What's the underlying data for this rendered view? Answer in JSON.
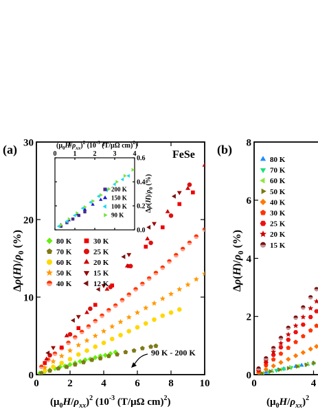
{
  "panel_a": {
    "label": "(a)",
    "material": "FeSe",
    "annotation": "90 K - 200 K",
    "xtick_labels": [
      "0",
      "2",
      "4",
      "6",
      "8",
      "10"
    ],
    "ytick_labels": [
      "0",
      "10",
      "20",
      "30"
    ],
    "inset_xtick_labels": [
      "0",
      "1",
      "2",
      "3",
      "4"
    ],
    "inset_ytick_labels": [
      "0.0",
      "0.2",
      "0.4",
      "0.6"
    ]
  },
  "panel_b": {
    "label": "(b)",
    "xtick_labels": [
      "0",
      "4"
    ],
    "ytick_labels": [
      "0",
      "2",
      "4",
      "6",
      "8"
    ]
  },
  "colors": {
    "K200": "#4b2a8c",
    "K150": "#1b1bc8",
    "K100": "#20d8f0",
    "K90": "#7ae040",
    "K80": "#66ee11",
    "K70": "#7f7a18",
    "K60": "#ffd800",
    "K50": "#ff9a00",
    "K40": "#ff3300",
    "K30": "#ee0000",
    "K25": "#dd1111",
    "K20": "#cc0000",
    "K15": "#990000",
    "K12": "#7a1010",
    "b80": "#1e8cff",
    "b70": "#19e07a",
    "b60": "#8ee83a",
    "b50": "#7a7a10",
    "b40": "#ff7a00",
    "b30": "#ff3300",
    "b25": "#ee1111",
    "b20": "#cc0000",
    "b15": "#7a1010"
  },
  "chart_data": [
    {
      "type": "scatter",
      "panel": "(a)",
      "title": "FeSe",
      "xlabel": "(μ0H/ρxx)² (10⁻³ (T/μΩ cm)²)",
      "ylabel": "Δρ(H)/ρ0 (%)",
      "xlim": [
        0,
        10
      ],
      "ylim": [
        0,
        30
      ],
      "series": [
        {
          "name": "80 K",
          "marker": "diamond",
          "color_key": "K80",
          "x": [
            0.2,
            0.5,
            0.8,
            1.1,
            1.4,
            1.7,
            2.0,
            2.3,
            2.6,
            2.9,
            3.2,
            3.5,
            3.8,
            4.1,
            4.4,
            4.7
          ],
          "y": [
            0.2,
            0.4,
            0.6,
            0.8,
            1.0,
            1.1,
            1.3,
            1.5,
            1.7,
            1.9,
            2.0,
            2.2,
            2.4,
            2.5,
            2.7,
            2.9
          ]
        },
        {
          "name": "70 K",
          "marker": "pentagon",
          "color_key": "K70",
          "x": [
            0.3,
            0.8,
            1.3,
            1.8,
            2.3,
            2.8,
            3.3,
            3.8,
            4.3,
            4.8,
            5.3,
            5.8,
            6.3,
            6.8,
            7.1
          ],
          "y": [
            0.2,
            0.5,
            0.8,
            1.0,
            1.3,
            1.6,
            1.9,
            2.1,
            2.4,
            2.6,
            2.9,
            3.1,
            3.4,
            3.6,
            3.7
          ]
        },
        {
          "name": "60 K",
          "marker": "circle",
          "color_key": "K60",
          "x": [
            0.5,
            1.0,
            1.5,
            2.0,
            2.5,
            3.0,
            3.5,
            4.0,
            4.5,
            5.0,
            5.5,
            6.0,
            6.5,
            7.0,
            7.5,
            8.0,
            8.5
          ],
          "y": [
            0.5,
            1.0,
            1.5,
            2.0,
            2.6,
            3.1,
            3.6,
            4.1,
            4.6,
            5.1,
            5.6,
            6.1,
            6.6,
            7.1,
            7.6,
            8.0,
            8.4
          ]
        },
        {
          "name": "50 K",
          "marker": "star",
          "color_key": "K50",
          "x": [
            0.5,
            1.0,
            1.5,
            2.0,
            2.5,
            3.0,
            3.5,
            4.0,
            4.5,
            5.0,
            5.5,
            6.0,
            6.5,
            7.0,
            7.5,
            8.0,
            8.5,
            9.0,
            9.5,
            10.0
          ],
          "y": [
            0.9,
            1.7,
            2.4,
            3.1,
            3.8,
            4.4,
            5.0,
            5.6,
            6.2,
            6.8,
            7.4,
            8.0,
            8.6,
            9.2,
            9.8,
            10.4,
            11.0,
            11.6,
            12.3,
            13.0
          ]
        },
        {
          "name": "40 K",
          "marker": "half-circle",
          "color_key": "K40",
          "x": [
            0.3,
            0.7,
            1.1,
            1.5,
            1.9,
            2.3,
            2.7,
            3.1,
            3.5,
            3.9,
            4.3,
            4.7,
            5.1,
            5.5,
            5.9,
            6.3,
            6.7,
            7.1,
            7.5,
            7.9,
            8.3,
            8.7,
            9.1,
            9.5,
            10.0
          ],
          "y": [
            1.0,
            1.9,
            2.7,
            3.4,
            4.1,
            4.8,
            5.5,
            6.2,
            6.9,
            7.6,
            8.3,
            8.9,
            9.6,
            10.3,
            11.0,
            11.7,
            12.4,
            13.1,
            13.8,
            14.6,
            15.4,
            16.2,
            17.0,
            17.8,
            18.7
          ]
        },
        {
          "name": "30 K",
          "marker": "square",
          "color_key": "K30",
          "x": [
            0.5,
            1.5,
            2.5,
            3.5,
            4.5,
            5.5,
            6.5,
            7.5,
            8.5,
            9.3
          ],
          "y": [
            1.5,
            3.5,
            6.0,
            9.0,
            11.5,
            14.0,
            16.5,
            19.0,
            22.0,
            23.5
          ]
        },
        {
          "name": "25 K",
          "marker": "circle",
          "color_key": "K25",
          "x": [
            0.8,
            2.0,
            3.2,
            4.4,
            5.6,
            6.8,
            8.0,
            9.1
          ],
          "y": [
            2.5,
            5.2,
            8.5,
            11.3,
            14.0,
            17.0,
            20.5,
            24.5
          ]
        },
        {
          "name": "20 K",
          "marker": "triangle-up",
          "color_key": "K20",
          "x": [
            0.6,
            1.8,
            3.0,
            4.2,
            5.4,
            6.6,
            7.8,
            9.0,
            10.0
          ],
          "y": [
            2.0,
            5.0,
            8.0,
            11.0,
            14.0,
            17.5,
            21.0,
            24.0,
            27.0
          ]
        },
        {
          "name": "15 K",
          "marker": "triangle-down",
          "color_key": "K15",
          "x": [
            1.0,
            2.5,
            4.0,
            5.5,
            7.0,
            8.5
          ],
          "y": [
            3.5,
            7.5,
            11.5,
            15.5,
            19.5,
            23.5
          ]
        },
        {
          "name": "12 K",
          "marker": "triangle-left",
          "color_key": "K12",
          "x": [
            0.7,
            2.2,
            3.7,
            5.2,
            6.7,
            8.2
          ],
          "y": [
            2.8,
            7.0,
            11.0,
            15.2,
            19.0,
            23.0
          ]
        }
      ]
    },
    {
      "type": "scatter",
      "panel": "(a) inset",
      "xlabel": "(μ0H/ρxx)² (10⁻³ (T/μΩ cm)²)",
      "ylabel": "Δρ(H)/ρ0 (%)",
      "xlim": [
        0,
        4
      ],
      "ylim": [
        0,
        0.6
      ],
      "series": [
        {
          "name": "200 K",
          "marker": "square",
          "color_key": "K200",
          "x": [
            0.3,
            0.6,
            0.9,
            1.2,
            1.5
          ],
          "y": [
            0.03,
            0.06,
            0.09,
            0.12,
            0.15
          ]
        },
        {
          "name": "150 K",
          "marker": "triangle-up",
          "color_key": "K150",
          "x": [
            0.3,
            0.7,
            1.1,
            1.5,
            1.9,
            2.3
          ],
          "y": [
            0.04,
            0.08,
            0.13,
            0.17,
            0.21,
            0.25
          ]
        },
        {
          "name": "100 K",
          "marker": "triangle-left",
          "color_key": "K100",
          "x": [
            0.2,
            0.6,
            1.0,
            1.4,
            1.8,
            2.2,
            2.6,
            3.0,
            3.4,
            3.7
          ],
          "y": [
            0.03,
            0.07,
            0.12,
            0.18,
            0.23,
            0.28,
            0.33,
            0.38,
            0.42,
            0.45
          ]
        },
        {
          "name": "90 K",
          "marker": "triangle-right",
          "color_key": "K90",
          "x": [
            0.3,
            0.7,
            1.1,
            1.5,
            1.9,
            2.3,
            2.7,
            3.1,
            3.5,
            3.9
          ],
          "y": [
            0.04,
            0.09,
            0.14,
            0.19,
            0.24,
            0.29,
            0.34,
            0.4,
            0.45,
            0.5
          ]
        }
      ]
    },
    {
      "type": "scatter",
      "panel": "(b)",
      "ylabel": "Δρ(H)/ρ0 (%)",
      "xlabel": "(μ0H/ρ",
      "xlim": [
        0,
        4.3
      ],
      "ylim": [
        0,
        8
      ],
      "series": [
        {
          "name": "80 K",
          "marker": "triangle-up",
          "color_key": "b80",
          "x": [
            0.4,
            0.8,
            1.2,
            1.6,
            2.0,
            2.4,
            2.8,
            3.2,
            3.6,
            4.0
          ],
          "y": [
            0.04,
            0.08,
            0.12,
            0.16,
            0.2,
            0.24,
            0.28,
            0.32,
            0.36,
            0.4
          ]
        },
        {
          "name": "70 K",
          "marker": "triangle-down",
          "color_key": "b70",
          "x": [
            0.5,
            1.0,
            1.5,
            2.0,
            2.5,
            3.0,
            3.5,
            4.0
          ],
          "y": [
            0.05,
            0.1,
            0.15,
            0.2,
            0.25,
            0.3,
            0.34,
            0.38
          ]
        },
        {
          "name": "60 K",
          "marker": "triangle-left",
          "color_key": "b60",
          "x": [
            0.6,
            1.2,
            1.8,
            2.4,
            3.0,
            3.6,
            4.0
          ],
          "y": [
            0.06,
            0.12,
            0.18,
            0.24,
            0.3,
            0.36,
            0.4
          ]
        },
        {
          "name": "50 K",
          "marker": "triangle-right",
          "color_key": "b50",
          "x": [
            0.5,
            1.1,
            1.7,
            2.3,
            2.9,
            3.5,
            4.0
          ],
          "y": [
            0.05,
            0.11,
            0.17,
            0.22,
            0.28,
            0.34,
            0.4
          ]
        },
        {
          "name": "40 K",
          "marker": "diamond",
          "color_key": "b40",
          "x": [
            0.3,
            0.8,
            1.3,
            1.8,
            2.3,
            2.8,
            3.3,
            3.8,
            4.2
          ],
          "y": [
            0.07,
            0.18,
            0.3,
            0.42,
            0.53,
            0.65,
            0.76,
            0.88,
            0.97
          ]
        },
        {
          "name": "30 K",
          "marker": "pentagon",
          "color_key": "b30",
          "x": [
            0.3,
            0.8,
            1.3,
            1.8,
            2.3,
            2.8,
            3.3,
            3.8,
            4.2
          ],
          "y": [
            0.12,
            0.32,
            0.52,
            0.72,
            0.92,
            1.12,
            1.32,
            1.52,
            1.68
          ]
        },
        {
          "name": "25 K",
          "marker": "hexagon",
          "color_key": "b25",
          "x": [
            0.3,
            0.8,
            1.3,
            1.8,
            2.3,
            2.8,
            3.3,
            3.8,
            4.2
          ],
          "y": [
            0.16,
            0.42,
            0.68,
            0.94,
            1.2,
            1.46,
            1.72,
            1.98,
            2.18
          ]
        },
        {
          "name": "20 K",
          "marker": "star",
          "color_key": "b20",
          "x": [
            0.3,
            0.8,
            1.3,
            1.8,
            2.3,
            2.8,
            3.3,
            3.8,
            4.2
          ],
          "y": [
            0.18,
            0.48,
            0.78,
            1.08,
            1.38,
            1.68,
            1.98,
            2.28,
            2.52
          ]
        },
        {
          "name": "15 K",
          "marker": "half-circle",
          "color_key": "b15",
          "x": [
            0.3,
            0.8,
            1.3,
            1.8,
            2.3,
            2.8,
            3.3,
            3.8,
            4.2
          ],
          "y": [
            0.21,
            0.56,
            0.91,
            1.26,
            1.61,
            1.96,
            2.31,
            2.66,
            2.94
          ]
        }
      ]
    }
  ]
}
